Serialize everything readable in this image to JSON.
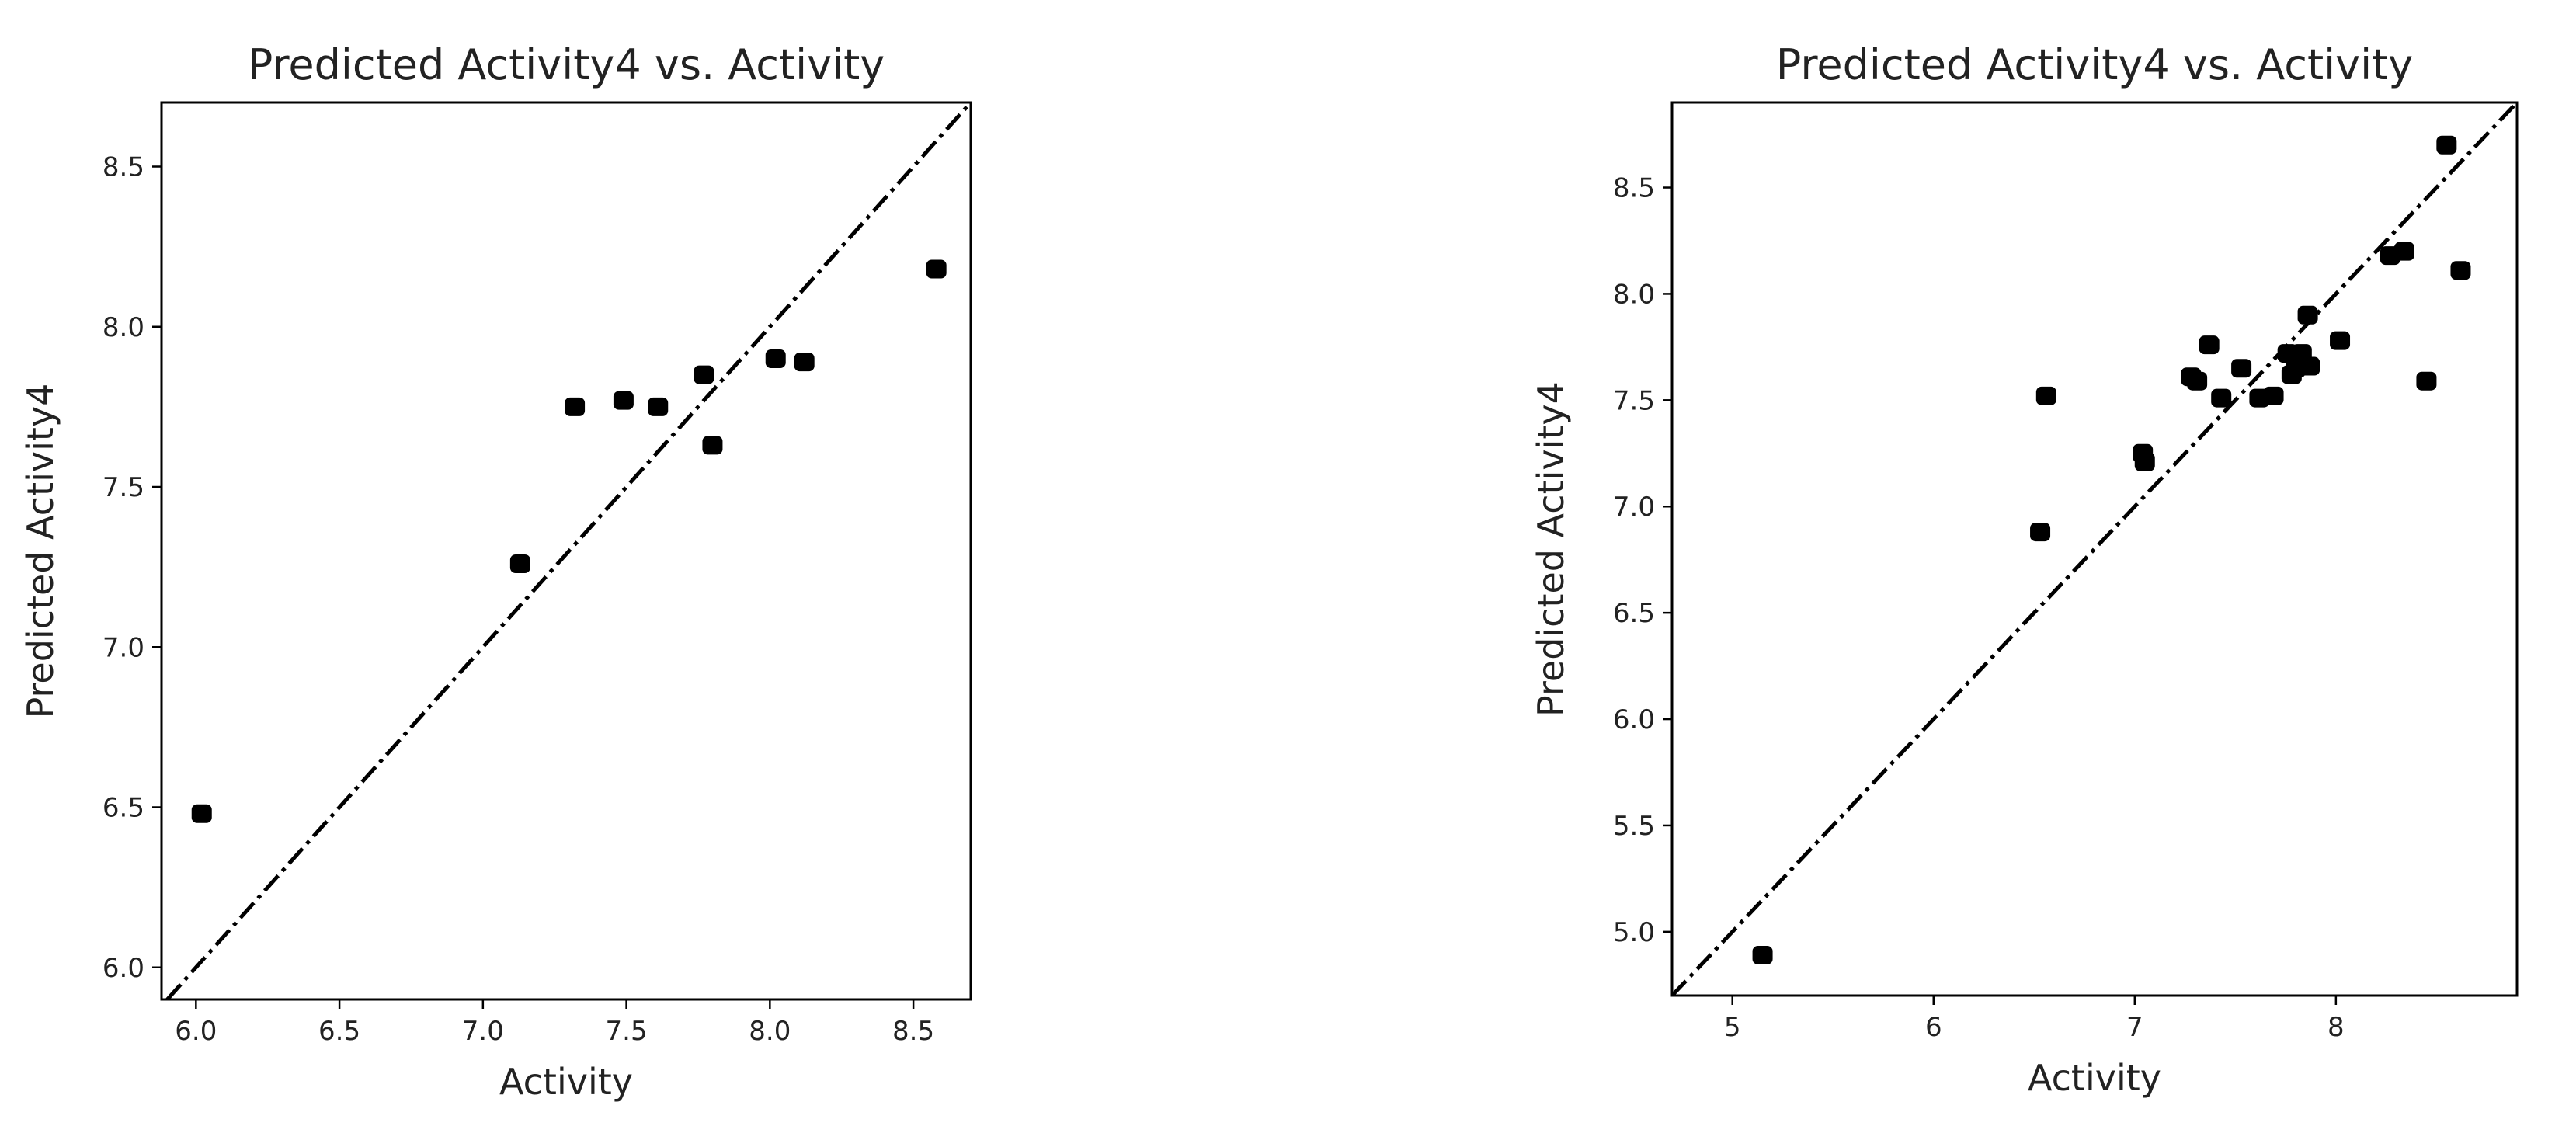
{
  "chart_data": [
    {
      "type": "scatter",
      "title": "Predicted Activity4 vs. Activity",
      "xlabel": "Activity",
      "ylabel": "Predicted Activity4",
      "xlim": [
        5.88,
        8.7
      ],
      "ylim": [
        5.9,
        8.7
      ],
      "xticks": [
        "6.0",
        "6.5",
        "7.0",
        "7.5",
        "8.0",
        "8.5"
      ],
      "yticks": [
        "6.0",
        "6.5",
        "7.0",
        "7.5",
        "8.0",
        "8.5"
      ],
      "grid": false,
      "reference_line": "y = x",
      "x": [
        6.02,
        7.13,
        7.32,
        7.49,
        7.61,
        7.77,
        7.8,
        8.02,
        8.12,
        8.58
      ],
      "y": [
        6.48,
        7.26,
        7.75,
        7.77,
        7.75,
        7.85,
        7.63,
        7.9,
        7.89,
        8.18
      ]
    },
    {
      "type": "scatter",
      "title": "Predicted Activity4 vs. Activity",
      "xlabel": "Activity",
      "ylabel": "Predicted Activity4",
      "xlim": [
        4.7,
        8.9
      ],
      "ylim": [
        4.7,
        8.9
      ],
      "xticks": [
        "5",
        "6",
        "7",
        "8"
      ],
      "yticks": [
        "5.0",
        "5.5",
        "6.0",
        "6.5",
        "7.0",
        "7.5",
        "8.0",
        "8.5"
      ],
      "grid": false,
      "reference_line": "y = x",
      "x": [
        5.15,
        6.53,
        6.56,
        7.04,
        7.05,
        7.28,
        7.31,
        7.37,
        7.43,
        7.53,
        7.62,
        7.69,
        7.76,
        7.78,
        7.8,
        7.83,
        7.86,
        7.87,
        8.02,
        8.27,
        8.34,
        8.45,
        8.55,
        8.62
      ],
      "y": [
        4.89,
        6.88,
        7.52,
        7.25,
        7.21,
        7.61,
        7.59,
        7.76,
        7.51,
        7.65,
        7.51,
        7.52,
        7.72,
        7.62,
        7.65,
        7.72,
        7.9,
        7.66,
        7.78,
        8.18,
        8.2,
        7.59,
        8.7,
        8.11
      ]
    }
  ]
}
